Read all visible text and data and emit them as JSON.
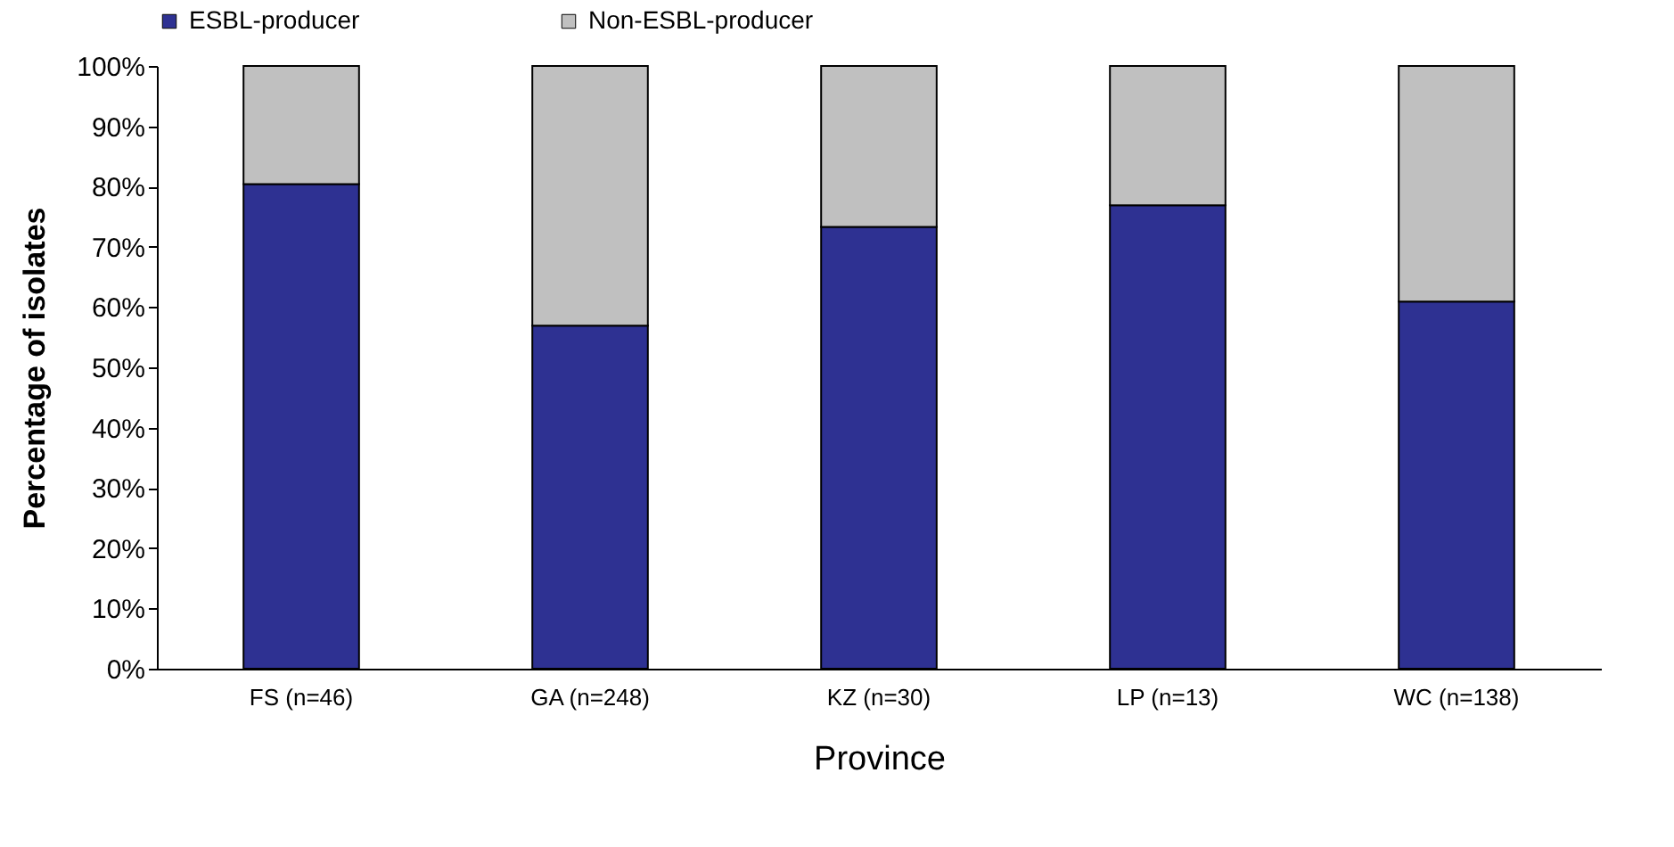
{
  "chart_data": {
    "type": "bar",
    "stacked": true,
    "xlabel": "Province",
    "ylabel": "Percentage of isolates",
    "categories": [
      "FS (n=46)",
      "GA (n=248)",
      "KZ (n=30)",
      "LP (n=13)",
      "WC (n=138)"
    ],
    "series": [
      {
        "name": "ESBL-producer",
        "color": "#2e3192",
        "values": [
          80.4,
          56.9,
          73.3,
          76.9,
          60.9
        ]
      },
      {
        "name": "Non-ESBL-producer",
        "color": "#c0c0c0",
        "values": [
          19.6,
          43.1,
          26.7,
          23.1,
          39.1
        ]
      }
    ],
    "ylim": [
      0,
      100
    ],
    "yticks": [
      {
        "value": 0,
        "label": "0%"
      },
      {
        "value": 10,
        "label": "10%"
      },
      {
        "value": 20,
        "label": "20%"
      },
      {
        "value": 30,
        "label": "30%"
      },
      {
        "value": 40,
        "label": "40%"
      },
      {
        "value": 50,
        "label": "50%"
      },
      {
        "value": 60,
        "label": "60%"
      },
      {
        "value": 70,
        "label": "70%"
      },
      {
        "value": 80,
        "label": "80%"
      },
      {
        "value": 90,
        "label": "90%"
      },
      {
        "value": 100,
        "label": "100%"
      }
    ],
    "grid": false,
    "legend": "top"
  }
}
